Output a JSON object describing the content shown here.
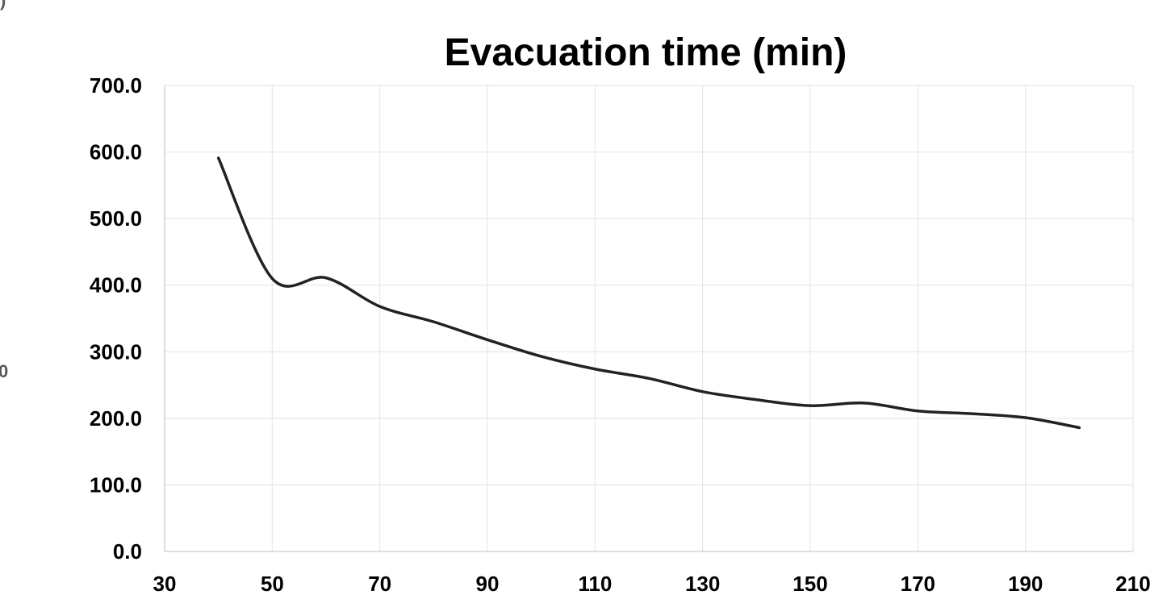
{
  "chart_data": {
    "type": "line",
    "title": "Evacuation time (min)",
    "xlabel": "",
    "ylabel": "",
    "xlim": [
      30,
      210
    ],
    "ylim": [
      0,
      700
    ],
    "x_ticks": [
      "30",
      "50",
      "70",
      "90",
      "110",
      "130",
      "150",
      "170",
      "190",
      "210"
    ],
    "y_ticks": [
      "0.0",
      "100.0",
      "200.0",
      "300.0",
      "400.0",
      "500.0",
      "600.0",
      "700.0"
    ],
    "grid": true,
    "legend": "none",
    "series": [
      {
        "color": "#222222",
        "x": [
          40,
          50,
          60,
          70,
          80,
          90,
          100,
          110,
          120,
          130,
          140,
          150,
          160,
          170,
          180,
          190,
          200
        ],
        "y": [
          591,
          410,
          411,
          368,
          345,
          318,
          293,
          274,
          260,
          240,
          228,
          219,
          223,
          211,
          207,
          201,
          186
        ]
      }
    ]
  },
  "edge_fragments": [
    "0",
    ")"
  ]
}
